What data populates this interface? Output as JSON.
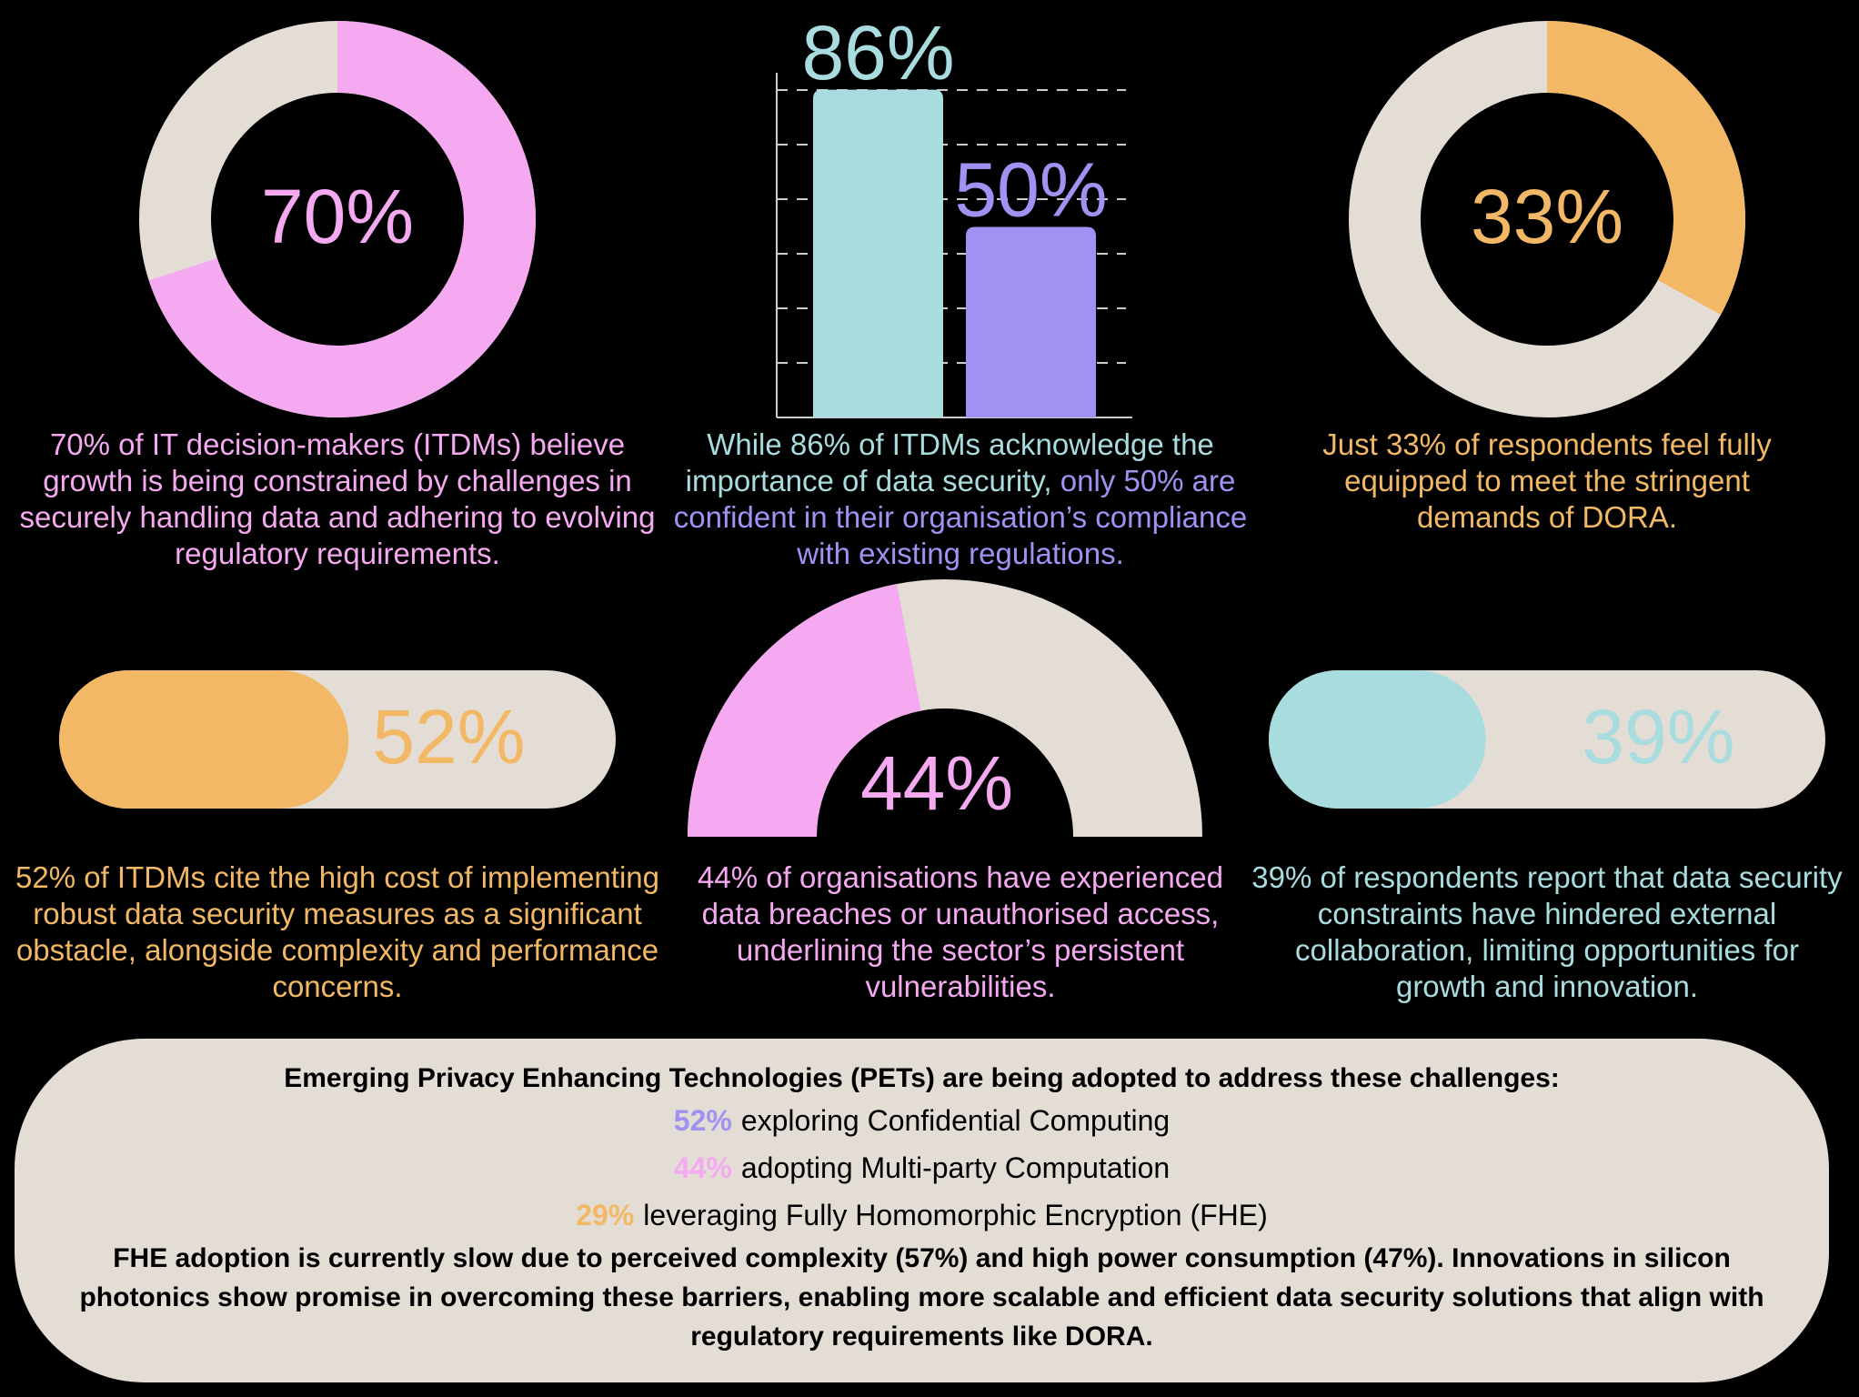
{
  "chart_data": [
    {
      "type": "donut",
      "values": [
        70
      ],
      "value_labels": [
        "70%"
      ],
      "ylim": [
        0,
        100
      ],
      "color": "#f4a9f0",
      "track_color": "#e4ddd5",
      "caption": "70% of IT decision-makers (ITDMs) believe growth is being constrained by challenges in securely handling data and adhering to evolving regulatory requirements."
    },
    {
      "type": "bar",
      "categories": [
        null,
        null
      ],
      "values": [
        86,
        50
      ],
      "value_labels": [
        "86%",
        "50%"
      ],
      "colors": [
        "#a8dcdf",
        "#a092f2"
      ],
      "ylim": [
        0,
        100
      ],
      "caption": [
        "While 86% of ITDMs acknowledge the importance of data security,",
        "only 50% are confident in their organisation’s compliance with existing regulations."
      ]
    },
    {
      "type": "donut",
      "values": [
        33
      ],
      "value_labels": [
        "33%"
      ],
      "ylim": [
        0,
        100
      ],
      "color": "#f2b865",
      "track_color": "#e4ddd5",
      "caption": "Just 33% of respondents feel fully equipped to meet the stringent demands of DORA."
    },
    {
      "type": "progress",
      "values": [
        52
      ],
      "value_labels": [
        "52%"
      ],
      "ylim": [
        0,
        100
      ],
      "color": "#f2b865",
      "track_color": "#e4ddd5",
      "caption": "52% of ITDMs cite the high cost of implementing robust data security measures as a significant obstacle, alongside complexity and performance concerns."
    },
    {
      "type": "gauge",
      "values": [
        44
      ],
      "value_labels": [
        "44%"
      ],
      "ylim": [
        0,
        100
      ],
      "color": "#f4a9f0",
      "track_color": "#e4ddd5",
      "caption": "44% of organisations have experienced data breaches or unauthorised access, underlining the sector’s persistent vulnerabilities."
    },
    {
      "type": "progress",
      "values": [
        39
      ],
      "value_labels": [
        "39%"
      ],
      "ylim": [
        0,
        100
      ],
      "color": "#a8dcdf",
      "track_color": "#e4ddd5",
      "caption": "39% of respondents report that data security constraints have hindered external collaboration, limiting opportunities for growth and innovation."
    }
  ],
  "panel": {
    "heading": "Emerging Privacy Enhancing Technologies (PETs) are being adopted to address these challenges:",
    "items": [
      {
        "percent": "52%",
        "text": "exploring Confidential Computing",
        "color": "#a092f2"
      },
      {
        "percent": "44%",
        "text": "adopting Multi-party Computation",
        "color": "#f4a9f0"
      },
      {
        "percent": "29%",
        "text": "leveraging Fully Homomorphic Encryption (FHE)",
        "color": "#f2b865"
      }
    ],
    "footer": "FHE adoption is currently slow due to perceived complexity (57%) and high power consumption (47%). Innovations in silicon photonics show promise in overcoming these barriers, enabling more scalable and efficient data security solutions that align with regulatory requirements like DORA."
  }
}
